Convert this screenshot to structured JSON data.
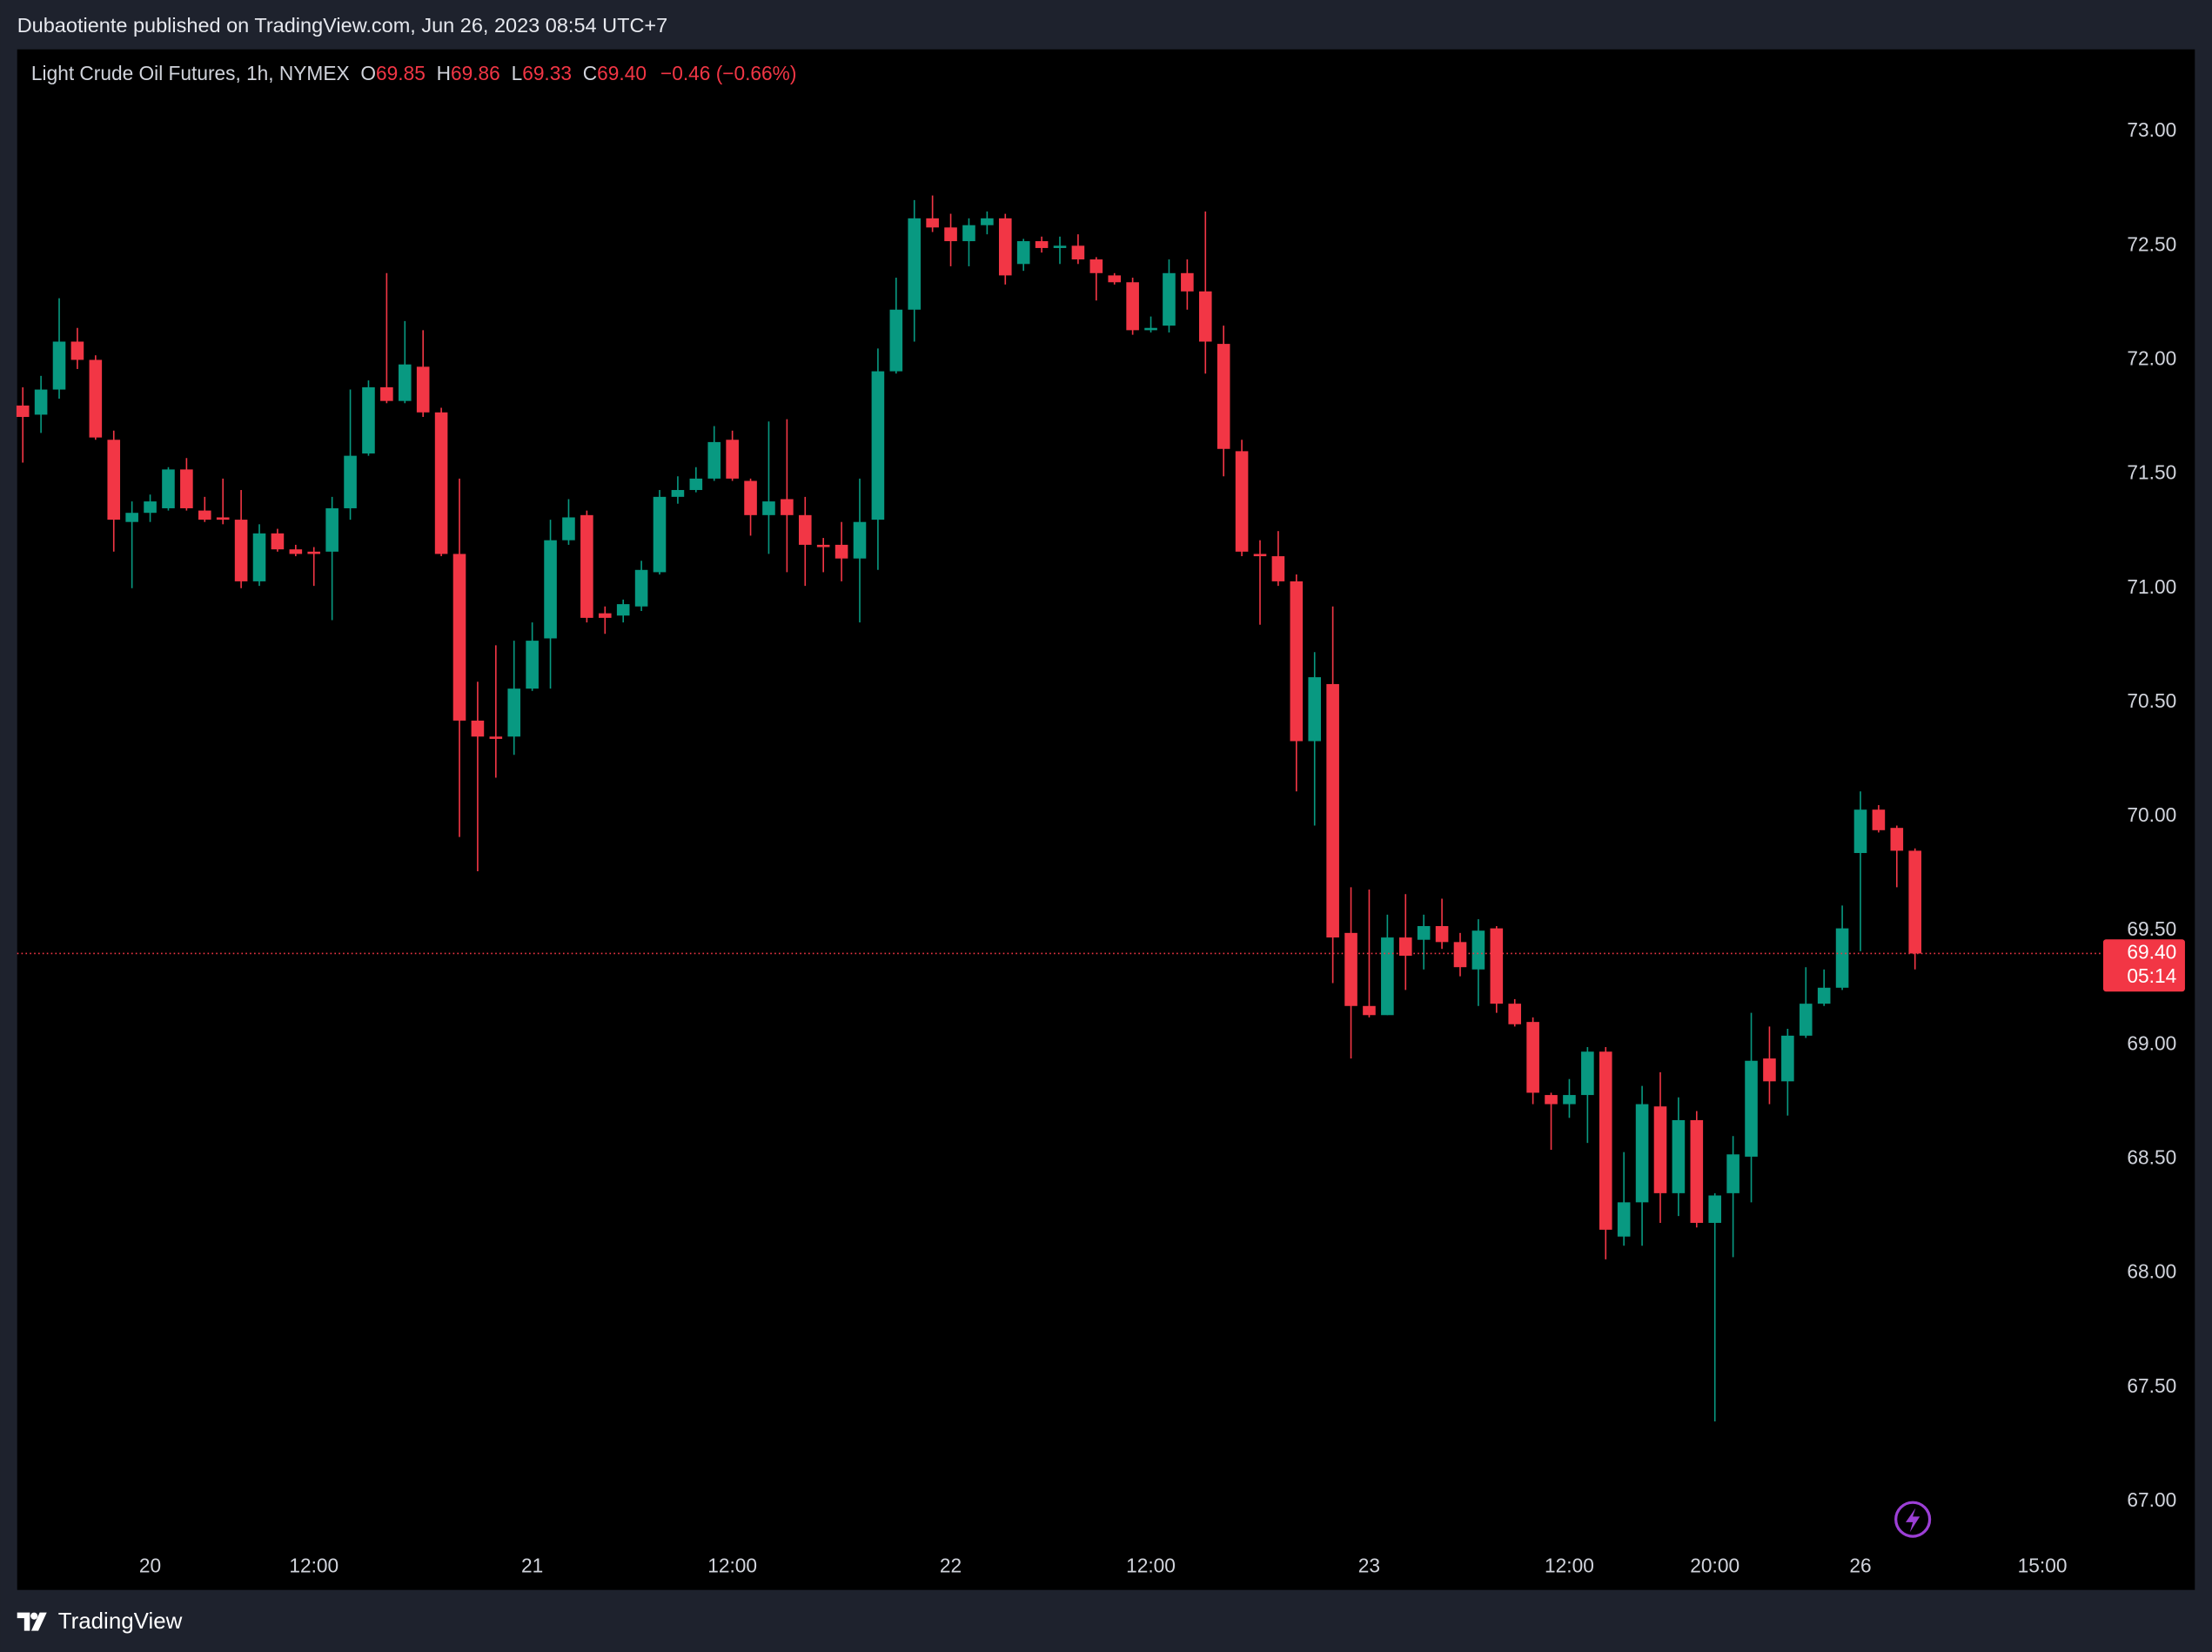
{
  "header": {
    "published": "Dubaotiente published on TradingView.com, Jun 26, 2023 08:54 UTC+7",
    "legend": {
      "symbol": "Light Crude Oil Futures, 1h, NYMEX",
      "items": [
        {
          "key": "O",
          "value": "69.85"
        },
        {
          "key": "H",
          "value": "69.86"
        },
        {
          "key": "L",
          "value": "69.33"
        },
        {
          "key": "C",
          "value": "69.40"
        }
      ],
      "change": "−0.46 (−0.66%)"
    }
  },
  "footer": {
    "brand": "TradingView"
  },
  "chart_data": {
    "type": "candlestick",
    "up_color": "#089981",
    "down_color": "#f23645",
    "grid": false,
    "categories": [
      null,
      null,
      null,
      null,
      null,
      null,
      null,
      "20",
      null,
      null,
      null,
      null,
      null,
      null,
      null,
      null,
      "12:00",
      null,
      null,
      null,
      null,
      null,
      null,
      null,
      null,
      null,
      null,
      null,
      "21",
      null,
      null,
      null,
      null,
      null,
      null,
      null,
      null,
      null,
      null,
      "12:00",
      null,
      null,
      null,
      null,
      null,
      null,
      null,
      null,
      null,
      null,
      null,
      "22",
      null,
      null,
      null,
      null,
      null,
      null,
      null,
      null,
      null,
      null,
      "12:00",
      null,
      null,
      null,
      null,
      null,
      null,
      null,
      null,
      null,
      null,
      null,
      "23",
      null,
      null,
      null,
      null,
      null,
      null,
      null,
      null,
      null,
      null,
      "12:00",
      null,
      null,
      null,
      null,
      null,
      null,
      null,
      "20:00",
      null,
      null,
      null,
      null,
      null,
      null,
      null,
      "26",
      null,
      null,
      null,
      null,
      null,
      null,
      null,
      null,
      null,
      "15:00"
    ],
    "open": [
      71.8,
      71.76,
      71.87,
      72.08,
      72.0,
      71.65,
      71.29,
      71.33,
      71.35,
      71.52,
      71.34,
      71.31,
      71.3,
      71.03,
      71.24,
      71.17,
      71.16,
      71.16,
      71.35,
      71.59,
      71.88,
      71.82,
      71.97,
      71.77,
      71.15,
      70.42,
      70.35,
      70.35,
      70.56,
      70.78,
      71.21,
      71.32,
      70.89,
      70.88,
      70.92,
      71.07,
      71.4,
      71.43,
      71.48,
      71.65,
      71.47,
      71.32,
      71.39,
      71.32,
      71.19,
      71.19,
      71.13,
      71.3,
      71.95,
      72.22,
      72.62,
      72.58,
      72.52,
      72.59,
      72.62,
      72.42,
      72.52,
      72.49,
      72.5,
      72.44,
      72.37,
      72.34,
      72.13,
      72.15,
      72.38,
      72.3,
      72.07,
      71.6,
      71.15,
      71.14,
      71.03,
      70.33,
      70.58,
      69.49,
      69.17,
      69.13,
      69.47,
      69.46,
      69.52,
      69.45,
      69.33,
      69.51,
      69.18,
      69.1,
      68.78,
      68.74,
      68.78,
      68.97,
      68.16,
      68.31,
      68.73,
      68.35,
      68.67,
      68.22,
      68.35,
      68.51,
      68.94,
      68.84,
      69.04,
      69.18,
      69.25,
      69.84,
      70.03,
      69.95,
      69.85,
      null,
      null,
      null,
      null,
      null,
      null,
      null
    ],
    "high": [
      71.88,
      71.93,
      72.27,
      72.14,
      72.02,
      71.69,
      71.38,
      71.41,
      71.53,
      71.57,
      71.4,
      71.48,
      71.43,
      71.28,
      71.26,
      71.19,
      71.18,
      71.4,
      71.87,
      71.91,
      72.38,
      72.17,
      72.13,
      71.79,
      71.48,
      70.59,
      70.75,
      70.77,
      70.85,
      71.3,
      71.39,
      71.34,
      70.92,
      70.95,
      71.12,
      71.43,
      71.49,
      71.53,
      71.71,
      71.69,
      71.48,
      71.73,
      71.74,
      71.4,
      71.22,
      71.29,
      71.48,
      72.05,
      72.36,
      72.7,
      72.72,
      72.64,
      72.62,
      72.65,
      72.64,
      72.53,
      72.54,
      72.54,
      72.55,
      72.45,
      72.38,
      72.36,
      72.19,
      72.44,
      72.44,
      72.65,
      72.15,
      71.65,
      71.21,
      71.25,
      71.06,
      70.72,
      70.92,
      69.69,
      69.68,
      69.57,
      69.66,
      69.57,
      69.64,
      69.49,
      69.55,
      69.52,
      69.2,
      69.12,
      68.79,
      68.85,
      68.99,
      68.99,
      68.53,
      68.82,
      68.88,
      68.77,
      68.71,
      68.35,
      68.6,
      69.14,
      69.08,
      69.07,
      69.34,
      69.33,
      69.61,
      70.11,
      70.05,
      69.96,
      69.86,
      null,
      null,
      null,
      null,
      null,
      null,
      null
    ],
    "low": [
      71.55,
      71.68,
      71.83,
      71.96,
      71.65,
      71.16,
      71.0,
      71.29,
      71.34,
      71.34,
      71.29,
      71.28,
      71.0,
      71.01,
      71.16,
      71.14,
      71.01,
      70.86,
      71.3,
      71.58,
      71.81,
      71.81,
      71.75,
      71.14,
      69.91,
      69.76,
      70.17,
      70.27,
      70.55,
      70.56,
      71.19,
      70.85,
      70.8,
      70.85,
      70.9,
      71.06,
      71.37,
      71.42,
      71.47,
      71.47,
      71.23,
      71.15,
      71.07,
      71.01,
      71.07,
      71.03,
      70.85,
      71.08,
      71.94,
      72.08,
      72.56,
      72.41,
      72.41,
      72.55,
      72.33,
      72.39,
      72.47,
      72.42,
      72.42,
      72.26,
      72.33,
      72.11,
      72.12,
      72.12,
      72.22,
      71.94,
      71.49,
      71.14,
      70.84,
      71.01,
      70.11,
      69.96,
      69.27,
      68.94,
      69.12,
      69.13,
      69.24,
      69.33,
      69.42,
      69.3,
      69.17,
      69.14,
      69.08,
      68.74,
      68.54,
      68.68,
      68.57,
      68.06,
      68.12,
      68.12,
      68.22,
      68.25,
      68.2,
      67.35,
      68.07,
      68.31,
      68.74,
      68.69,
      69.03,
      69.17,
      69.24,
      69.41,
      69.93,
      69.69,
      69.33,
      null,
      null,
      null,
      null,
      null,
      null,
      null
    ],
    "close": [
      71.75,
      71.87,
      72.08,
      72.0,
      71.66,
      71.3,
      71.33,
      71.38,
      71.52,
      71.35,
      71.3,
      71.3,
      71.03,
      71.24,
      71.17,
      71.15,
      71.15,
      71.35,
      71.58,
      71.88,
      71.82,
      71.98,
      71.77,
      71.15,
      70.42,
      70.35,
      70.34,
      70.56,
      70.77,
      71.21,
      71.31,
      70.87,
      70.87,
      70.93,
      71.08,
      71.4,
      71.43,
      71.48,
      71.64,
      71.48,
      71.32,
      71.38,
      71.32,
      71.19,
      71.18,
      71.13,
      71.29,
      71.95,
      72.22,
      72.62,
      72.58,
      72.52,
      72.59,
      72.62,
      72.37,
      72.52,
      72.49,
      72.5,
      72.44,
      72.38,
      72.34,
      72.13,
      72.14,
      72.38,
      72.3,
      72.08,
      71.61,
      71.16,
      71.14,
      71.03,
      70.33,
      70.61,
      69.47,
      69.17,
      69.13,
      69.47,
      69.39,
      69.52,
      69.45,
      69.34,
      69.5,
      69.18,
      69.09,
      68.79,
      68.74,
      68.78,
      68.97,
      68.19,
      68.31,
      68.74,
      68.35,
      68.67,
      68.22,
      68.34,
      68.52,
      68.93,
      68.84,
      69.04,
      69.18,
      69.25,
      69.51,
      70.03,
      69.94,
      69.85,
      69.4,
      null,
      null,
      null,
      null,
      null,
      null,
      null
    ],
    "ylim": [
      66.81,
      73.36
    ],
    "yticks": [
      {
        "value": 67,
        "label": "67.00"
      },
      {
        "value": 67.5,
        "label": "67.50"
      },
      {
        "value": 68,
        "label": "68.00"
      },
      {
        "value": 68.5,
        "label": "68.50"
      },
      {
        "value": 69,
        "label": "69.00"
      },
      {
        "value": 69.5,
        "label": "69.50"
      },
      {
        "value": 70,
        "label": "70.00"
      },
      {
        "value": 70.5,
        "label": "70.50"
      },
      {
        "value": 71,
        "label": "71.00"
      },
      {
        "value": 71.5,
        "label": "71.50"
      },
      {
        "value": 72,
        "label": "72.00"
      },
      {
        "value": 72.5,
        "label": "72.50"
      },
      {
        "value": 73,
        "label": "73.00"
      }
    ],
    "last_price": {
      "value": 69.4,
      "label": "69.40"
    },
    "countdown": "05:14"
  }
}
